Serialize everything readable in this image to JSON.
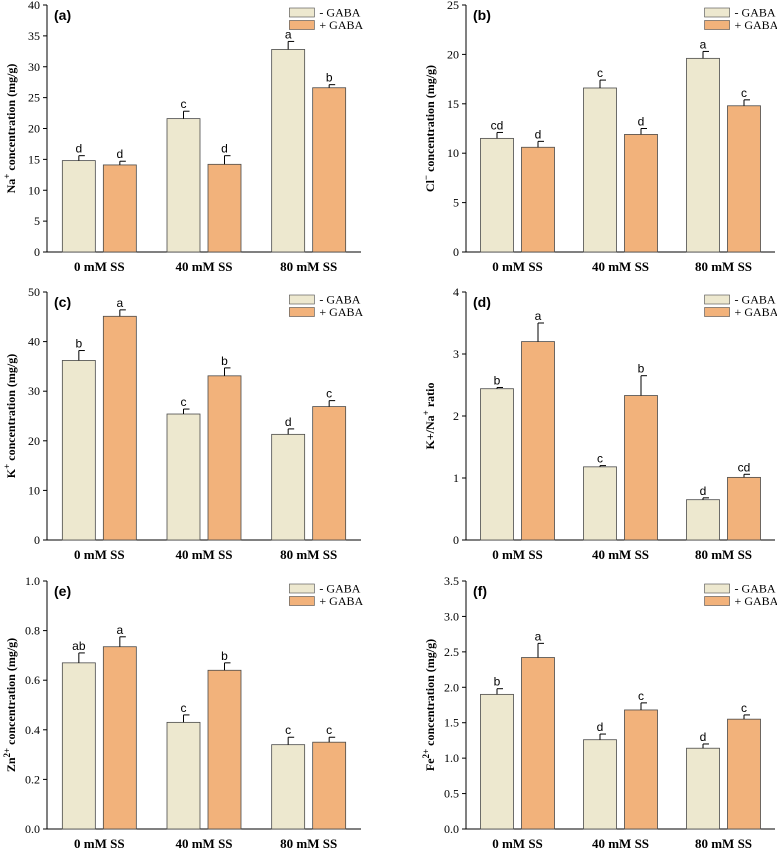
{
  "colors": {
    "minus_gaba": "#ede8cf",
    "plus_gaba": "#f2b27b",
    "edge": "#4a4a4a"
  },
  "legend": {
    "minus": "- GABA",
    "plus": "+ GABA"
  },
  "chart_data": [
    {
      "type": "bar",
      "panel_label": "(a)",
      "ylabel_parts": [
        "Na",
        "+",
        " concentration (mg/g)"
      ],
      "categories": [
        "0 mM SS",
        "40 mM SS",
        "80 mM SS"
      ],
      "ylim": [
        0,
        40
      ],
      "yticks": [
        "0",
        "5",
        "10",
        "15",
        "20",
        "25",
        "30",
        "35",
        "40"
      ],
      "ytick_values": [
        0,
        5,
        10,
        15,
        20,
        25,
        30,
        35,
        40
      ],
      "series": [
        {
          "name": "- GABA",
          "values": [
            14.8,
            21.6,
            32.8
          ],
          "errors": [
            0.8,
            1.2,
            1.3
          ],
          "letters": [
            "d",
            "c",
            "a"
          ]
        },
        {
          "name": "+ GABA",
          "values": [
            14.1,
            14.2,
            26.6
          ],
          "errors": [
            0.6,
            1.4,
            0.5
          ],
          "letters": [
            "d",
            "d",
            "b"
          ]
        }
      ]
    },
    {
      "type": "bar",
      "panel_label": "(b)",
      "ylabel_parts": [
        "Cl",
        "−",
        " concentration (mg/g)"
      ],
      "categories": [
        "0 mM SS",
        "40 mM SS",
        "80 mM SS"
      ],
      "ylim": [
        0,
        25
      ],
      "yticks": [
        "0",
        "5",
        "10",
        "15",
        "20",
        "25"
      ],
      "ytick_values": [
        0,
        5,
        10,
        15,
        20,
        25
      ],
      "series": [
        {
          "name": "- GABA",
          "values": [
            11.5,
            16.6,
            19.6
          ],
          "errors": [
            0.6,
            0.8,
            0.7
          ],
          "letters": [
            "cd",
            "c",
            "a"
          ]
        },
        {
          "name": "+ GABA",
          "values": [
            10.6,
            11.9,
            14.8
          ],
          "errors": [
            0.6,
            0.6,
            0.6
          ],
          "letters": [
            "d",
            "d",
            "c"
          ]
        }
      ]
    },
    {
      "type": "bar",
      "panel_label": "(c)",
      "ylabel_parts": [
        "K",
        "+",
        " concentration (mg/g)"
      ],
      "categories": [
        "0 mM SS",
        "40 mM SS",
        "80 mM SS"
      ],
      "ylim": [
        0,
        50
      ],
      "yticks": [
        "0",
        "10",
        "20",
        "30",
        "40",
        "50"
      ],
      "ytick_values": [
        0,
        10,
        20,
        30,
        40,
        50
      ],
      "series": [
        {
          "name": "- GABA",
          "values": [
            36.2,
            25.4,
            21.3
          ],
          "errors": [
            2.0,
            1.0,
            1.1
          ],
          "letters": [
            "b",
            "c",
            "d"
          ]
        },
        {
          "name": "+ GABA",
          "values": [
            45.1,
            33.1,
            26.9
          ],
          "errors": [
            1.3,
            1.6,
            1.2
          ],
          "letters": [
            "a",
            "b",
            "c"
          ]
        }
      ]
    },
    {
      "type": "bar",
      "panel_label": "(d)",
      "ylabel_parts": [
        "K+/Na",
        "+",
        " ratio"
      ],
      "categories": [
        "0 mM SS",
        "40 mM SS",
        "80 mM SS"
      ],
      "ylim": [
        0,
        4
      ],
      "yticks": [
        "0",
        "1",
        "2",
        "3",
        "4"
      ],
      "ytick_values": [
        0,
        1,
        2,
        3,
        4
      ],
      "series": [
        {
          "name": "- GABA",
          "values": [
            2.44,
            1.18,
            0.65
          ],
          "errors": [
            0.02,
            0.02,
            0.03
          ],
          "letters": [
            "b",
            "c",
            "d"
          ]
        },
        {
          "name": "+ GABA",
          "values": [
            3.2,
            2.33,
            1.01
          ],
          "errors": [
            0.3,
            0.32,
            0.05
          ],
          "letters": [
            "a",
            "b",
            "cd"
          ]
        }
      ]
    },
    {
      "type": "bar",
      "panel_label": "(e)",
      "ylabel_parts": [
        "Zn",
        "2+",
        " concentration (mg/g)"
      ],
      "categories": [
        "0 mM SS",
        "40 mM SS",
        "80 mM SS"
      ],
      "ylim": [
        0,
        1.0
      ],
      "yticks": [
        "0.0",
        "0.2",
        "0.4",
        "0.6",
        "0.8",
        "1.0"
      ],
      "ytick_values": [
        0,
        0.2,
        0.4,
        0.6,
        0.8,
        1.0
      ],
      "series": [
        {
          "name": "- GABA",
          "values": [
            0.67,
            0.43,
            0.34
          ],
          "errors": [
            0.04,
            0.03,
            0.03
          ],
          "letters": [
            "ab",
            "c",
            "c"
          ]
        },
        {
          "name": "+ GABA",
          "values": [
            0.735,
            0.64,
            0.35
          ],
          "errors": [
            0.04,
            0.03,
            0.02
          ],
          "letters": [
            "a",
            "b",
            "c"
          ]
        }
      ]
    },
    {
      "type": "bar",
      "panel_label": "(f)",
      "ylabel_parts": [
        "Fe",
        "2+",
        " concentration (mg/g)"
      ],
      "categories": [
        "0 mM SS",
        "40 mM SS",
        "80 mM SS"
      ],
      "ylim": [
        0,
        3.5
      ],
      "yticks": [
        "0.0",
        "0.5",
        "1.0",
        "1.5",
        "2.0",
        "2.5",
        "3.0",
        "3.5"
      ],
      "ytick_values": [
        0,
        0.5,
        1.0,
        1.5,
        2.0,
        2.5,
        3.0,
        3.5
      ],
      "series": [
        {
          "name": "- GABA",
          "values": [
            1.9,
            1.26,
            1.14
          ],
          "errors": [
            0.08,
            0.08,
            0.06
          ],
          "letters": [
            "b",
            "d",
            "d"
          ]
        },
        {
          "name": "+ GABA",
          "values": [
            2.42,
            1.68,
            1.55
          ],
          "errors": [
            0.2,
            0.1,
            0.06
          ],
          "letters": [
            "a",
            "c",
            "c"
          ]
        }
      ]
    }
  ]
}
